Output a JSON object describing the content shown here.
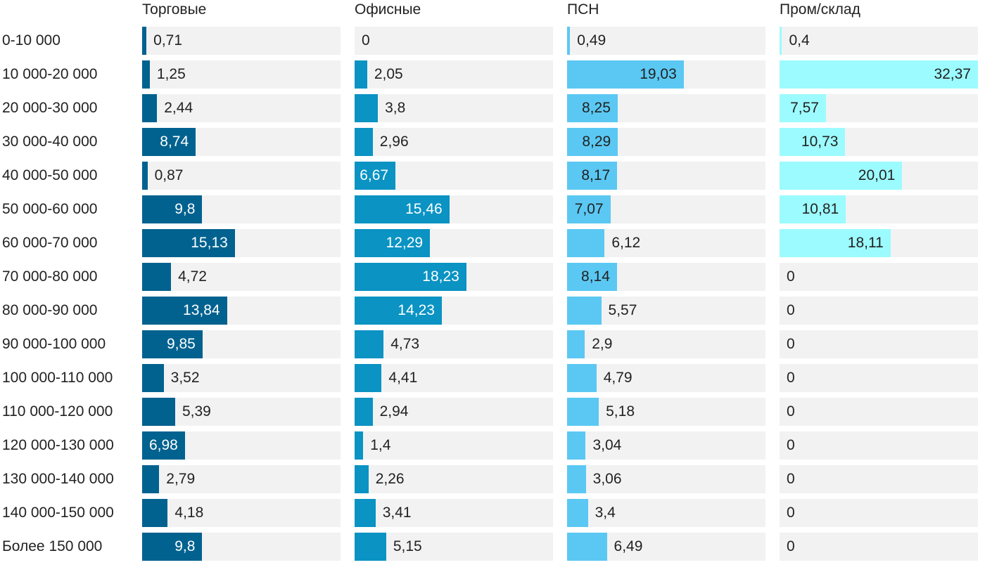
{
  "chart_data": {
    "type": "bar",
    "orientation": "horizontal",
    "layout": "small-multiples",
    "xlim": [
      0,
      32.37
    ],
    "categories": [
      "0-10 000",
      "10 000-20 000",
      "20 000-30 000",
      "30 000-40 000",
      "40 000-50 000",
      "50 000-60 000",
      "60 000-70 000",
      "70 000-80 000",
      "80 000-90 000",
      "90 000-100 000",
      "100 000-110 000",
      "110 000-120 000",
      "120 000-130 000",
      "130 000-140 000",
      "140 000-150 000",
      "Более 150 000"
    ],
    "series": [
      {
        "name": "Торговые",
        "color": "#02628f",
        "labels": [
          "0,71",
          "1,25",
          "2,44",
          "8,74",
          "0,87",
          "9,8",
          "15,13",
          "4,72",
          "13,84",
          "9,85",
          "3,52",
          "5,39",
          "6,98",
          "2,79",
          "4,18",
          "9,8"
        ],
        "values": [
          0.71,
          1.25,
          2.44,
          8.74,
          0.87,
          9.8,
          15.13,
          4.72,
          13.84,
          9.85,
          3.52,
          5.39,
          6.98,
          2.79,
          4.18,
          9.8
        ]
      },
      {
        "name": "Офисные",
        "color": "#0a93c3",
        "labels": [
          "0",
          "2,05",
          "3,8",
          "2,96",
          "6,67",
          "15,46",
          "12,29",
          "18,23",
          "14,23",
          "4,73",
          "4,41",
          "2,94",
          "1,4",
          "2,26",
          "3,41",
          "5,15"
        ],
        "values": [
          0,
          2.05,
          3.8,
          2.96,
          6.67,
          15.46,
          12.29,
          18.23,
          14.23,
          4.73,
          4.41,
          2.94,
          1.4,
          2.26,
          3.41,
          5.15
        ]
      },
      {
        "name": "ПСН",
        "color": "#5bc8f3",
        "labels": [
          "0,49",
          "19,03",
          "8,25",
          "8,29",
          "8,17",
          "7,07",
          "6,12",
          "8,14",
          "5,57",
          "2,9",
          "4,79",
          "5,18",
          "3,04",
          "3,06",
          "3,4",
          "6,49"
        ],
        "values": [
          0.49,
          19.03,
          8.25,
          8.29,
          8.17,
          7.07,
          6.12,
          8.14,
          5.57,
          2.9,
          4.79,
          5.18,
          3.04,
          3.06,
          3.4,
          6.49
        ]
      },
      {
        "name": "Пром/склад",
        "color": "#9cfbfe",
        "labels": [
          "0,4",
          "32,37",
          "7,57",
          "10,73",
          "20,01",
          "10,81",
          "18,11",
          "0",
          "0",
          "0",
          "0",
          "0",
          "0",
          "0",
          "0",
          "0"
        ],
        "values": [
          0.4,
          32.37,
          7.57,
          10.73,
          20.01,
          10.81,
          18.11,
          0,
          0,
          0,
          0,
          0,
          0,
          0,
          0,
          0
        ]
      }
    ]
  }
}
